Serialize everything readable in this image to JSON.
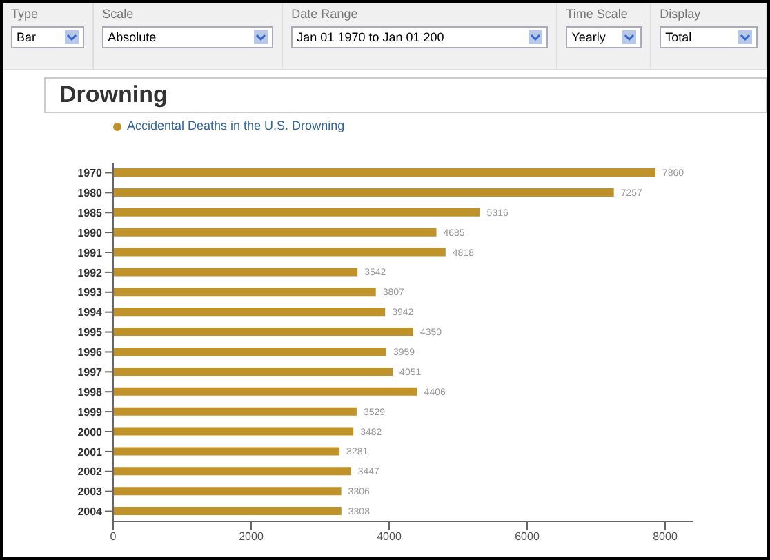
{
  "chart_data": {
    "type": "bar",
    "orientation": "horizontal",
    "title": "Drowning",
    "annotations": [
      "Type",
      "Bar",
      "Scale",
      "Absolute",
      "Date Range",
      "Jan 01 1970 to Jan 01 200",
      "Time Scale",
      "Yearly",
      "Display",
      "Total"
    ],
    "categories": [
      "1970",
      "1980",
      "1985",
      "1990",
      "1991",
      "1992",
      "1993",
      "1994",
      "1995",
      "1996",
      "1997",
      "1998",
      "1999",
      "2000",
      "2001",
      "2002",
      "2003",
      "2004"
    ],
    "series": [
      {
        "name": "Accidental Deaths in the U.S. Drowning",
        "color": "#c0922a",
        "values": [
          7860,
          7257,
          5316,
          4685,
          4818,
          3542,
          3807,
          3942,
          4350,
          3959,
          4051,
          4406,
          3529,
          3482,
          3281,
          3447,
          3306,
          3308
        ]
      }
    ],
    "data_labels": true,
    "xlim": [
      0,
      8400
    ],
    "xticks": [
      0,
      2000,
      4000,
      6000,
      8000
    ],
    "legend": "top left",
    "grid": false
  }
}
